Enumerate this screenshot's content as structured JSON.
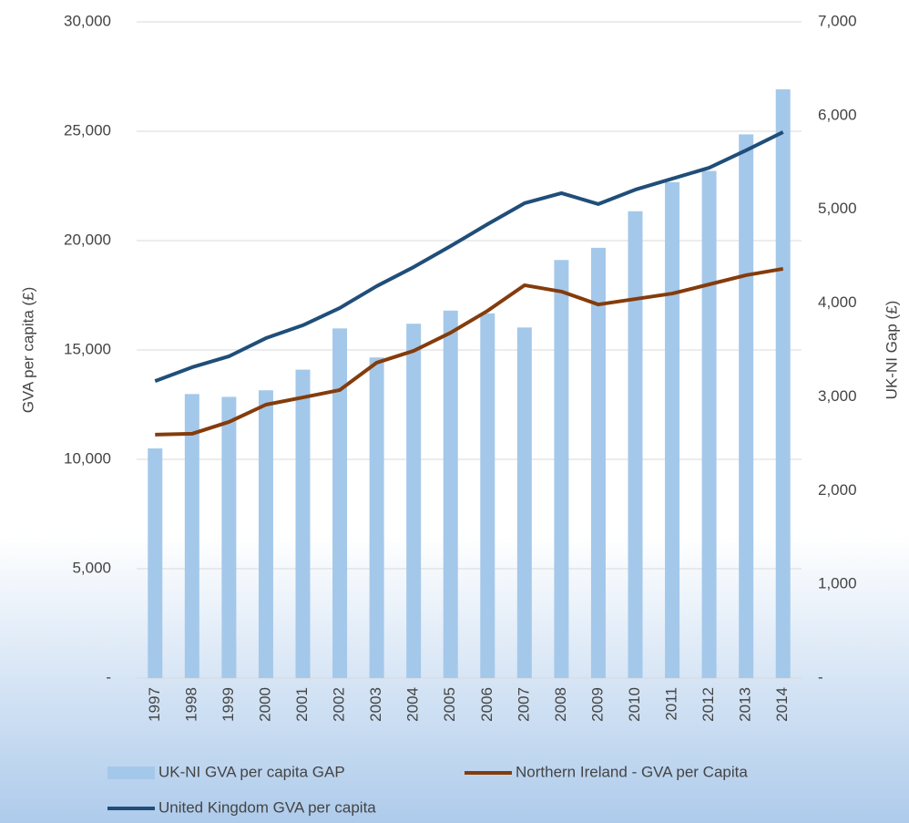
{
  "chart_data": {
    "type": "bar",
    "categories": [
      "1997",
      "1998",
      "1999",
      "2000",
      "2001",
      "2002",
      "2003",
      "2004",
      "2005",
      "2006",
      "2007",
      "2008",
      "2009",
      "2010",
      "2011",
      "2012",
      "2013",
      "2014"
    ],
    "series": [
      {
        "name": "UK-NI GVA per capita GAP",
        "type": "bar",
        "axis": "y2",
        "color": "#a4c8ea",
        "values": [
          2450,
          3030,
          3000,
          3070,
          3290,
          3730,
          3420,
          3780,
          3920,
          3890,
          3740,
          4460,
          4590,
          4980,
          5290,
          5410,
          5800,
          6280
        ]
      },
      {
        "name": "Northern Ireland - GVA per Capita",
        "type": "line",
        "color": "#843c0c",
        "values": [
          11130,
          11170,
          11710,
          12500,
          12830,
          13170,
          14420,
          14960,
          15790,
          16790,
          17960,
          17670,
          17080,
          17330,
          17580,
          18000,
          18420,
          18710
        ]
      },
      {
        "name": "United Kingdom GVA per capita",
        "type": "line",
        "color": "#1f4e79",
        "values": [
          13580,
          14210,
          14710,
          15540,
          16130,
          16920,
          17920,
          18790,
          19750,
          20750,
          21710,
          22170,
          21670,
          22330,
          22830,
          23330,
          24130,
          24960
        ]
      }
    ],
    "y_label": "GVA per capita (£)",
    "y2_label": "UK-NI Gap (£)",
    "ylim": [
      0,
      30000
    ],
    "yticks": [
      {
        "value": 0,
        "label": "-"
      },
      {
        "value": 5000,
        "label": "5,000"
      },
      {
        "value": 10000,
        "label": "10,000"
      },
      {
        "value": 15000,
        "label": "15,000"
      },
      {
        "value": 20000,
        "label": "20,000"
      },
      {
        "value": 25000,
        "label": "25,000"
      },
      {
        "value": 30000,
        "label": "30,000"
      }
    ],
    "y2lim": [
      0,
      7000
    ],
    "y2ticks": [
      {
        "value": 0,
        "label": "-"
      },
      {
        "value": 1000,
        "label": "1,000"
      },
      {
        "value": 2000,
        "label": "2,000"
      },
      {
        "value": 3000,
        "label": "3,000"
      },
      {
        "value": 4000,
        "label": "4,000"
      },
      {
        "value": 5000,
        "label": "5,000"
      },
      {
        "value": 6000,
        "label": "6,000"
      },
      {
        "value": 7000,
        "label": "7,000"
      }
    ],
    "grid": true,
    "legend": "bottom"
  }
}
